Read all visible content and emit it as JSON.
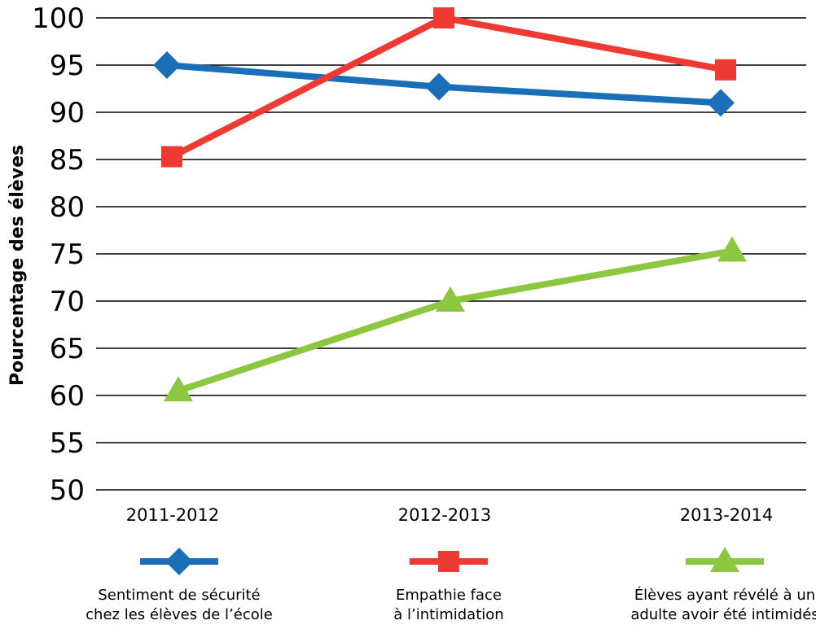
{
  "chart_data": {
    "type": "line",
    "categories": [
      "2011-2012",
      "2012-2013",
      "2013-2014"
    ],
    "series": [
      {
        "name_lines": [
          "Sentiment de sécurité",
          "chez les élèves de l’école"
        ],
        "values": [
          95,
          92.7,
          91
        ],
        "color": "#1a6fb8",
        "marker": "diamond"
      },
      {
        "name_lines": [
          "Empathie face",
          "à l’intimidation"
        ],
        "values": [
          85.3,
          100,
          94.5
        ],
        "color": "#ee3a33",
        "marker": "square"
      },
      {
        "name_lines": [
          "Élèves ayant révélé à un",
          "adulte avoir été intimidés"
        ],
        "values": [
          60.5,
          70,
          75.3
        ],
        "color": "#8dc63f",
        "marker": "triangle"
      }
    ],
    "ylabel": "Pourcentage des élèves",
    "ylim": [
      50,
      100
    ],
    "yticks": [
      100,
      95,
      90,
      85,
      80,
      75,
      70,
      65,
      60,
      55,
      50
    ],
    "grid": true,
    "legend_position": "bottom"
  }
}
